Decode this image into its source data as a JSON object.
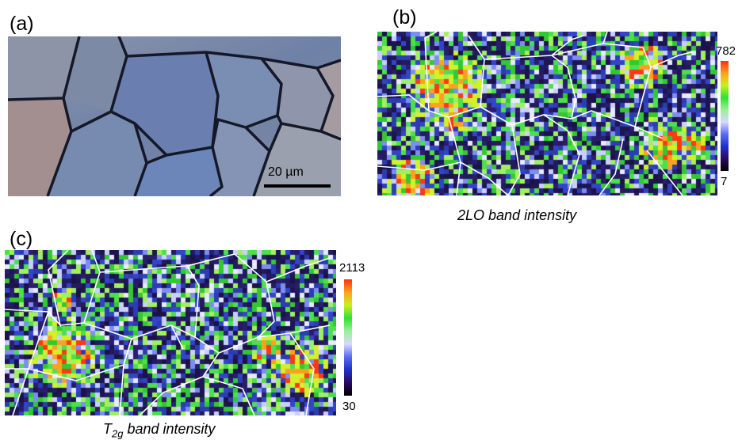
{
  "panels": {
    "a": {
      "label": "(a)",
      "scale_bar_text": "20 µm"
    },
    "b": {
      "label": "(b)",
      "colorbar_max": "782",
      "colorbar_min": "7",
      "caption": "2LO band intensity"
    },
    "c": {
      "label": "(c)",
      "colorbar_max": "2113",
      "colorbar_min": "30",
      "caption_main": "T",
      "caption_sub": "2g",
      "caption_rest": " band intensity"
    }
  },
  "colors": {
    "grain_fill": "#6f80a3",
    "grain_boundary": "#1a1a2a",
    "map_background": "#1d1650",
    "boundary_lines": "#ffffff",
    "colormap": [
      "#000000",
      "#2a0a5e",
      "#2030c8",
      "#5a6cf0",
      "#d8d8ff",
      "#9af09a",
      "#33e033",
      "#c8f020",
      "#ffa020",
      "#ff3010"
    ]
  }
}
